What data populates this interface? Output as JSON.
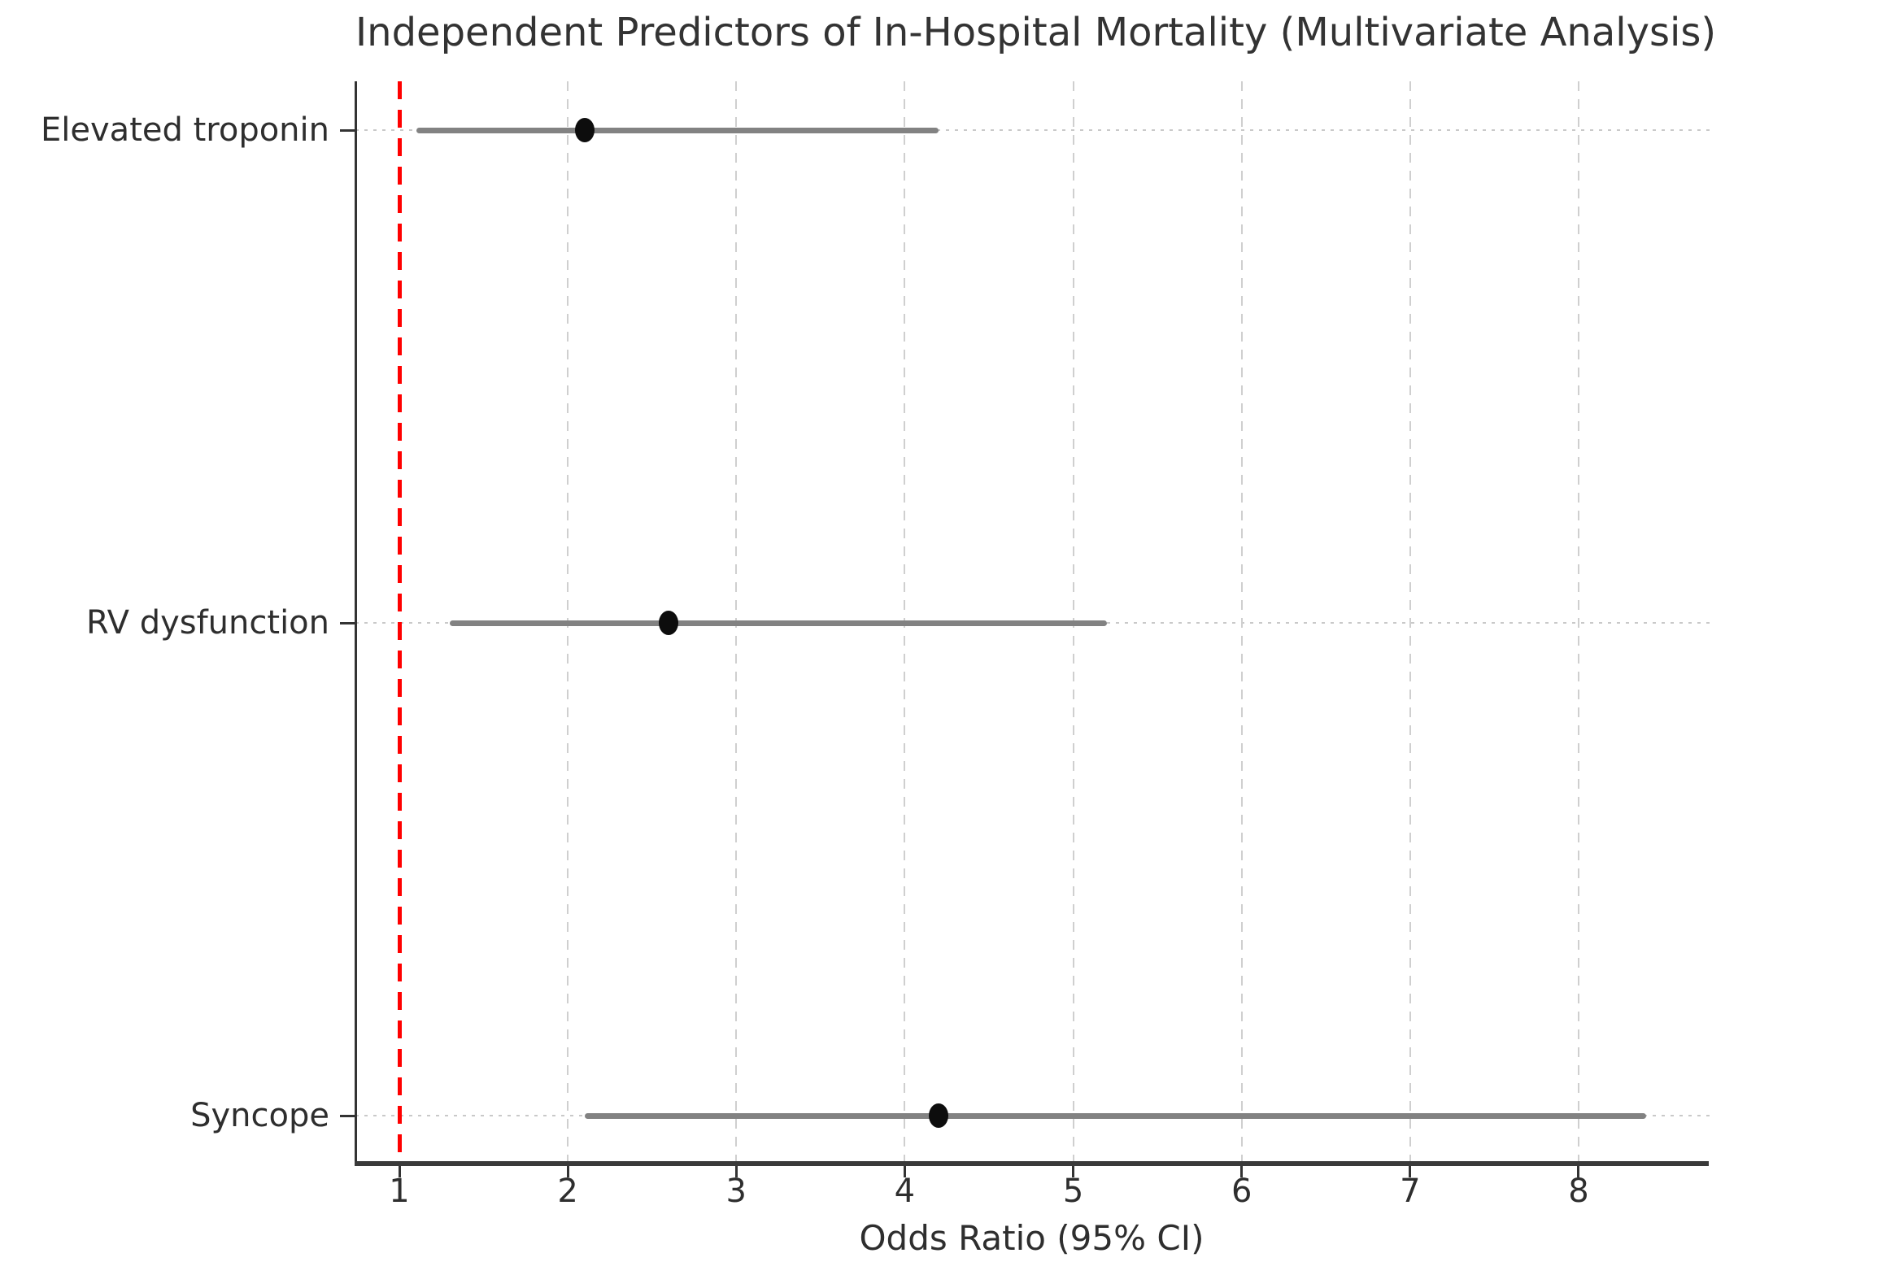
{
  "chart_data": {
    "type": "scatter",
    "subtype": "forest-plot",
    "title": "Independent Predictors of In-Hospital Mortality (Multivariate Analysis)",
    "xlabel": "Odds Ratio (95% CI)",
    "ylabel": "",
    "x_ticks": [
      1,
      2,
      3,
      4,
      5,
      6,
      7,
      8
    ],
    "xlim": [
      0.74,
      8.78
    ],
    "grid": "on",
    "legend": "none",
    "reference_line": {
      "value": 1,
      "style": "dashed",
      "color": "#ff0000"
    },
    "rows": [
      {
        "label": "Elevated troponin",
        "odds_ratio": 2.1,
        "ci_low": 1.1,
        "ci_high": 4.2
      },
      {
        "label": "RV dysfunction",
        "odds_ratio": 2.6,
        "ci_low": 1.3,
        "ci_high": 5.2
      },
      {
        "label": "Syncope",
        "odds_ratio": 4.2,
        "ci_low": 2.1,
        "ci_high": 8.4
      }
    ],
    "colors": {
      "ci_line": "#828282",
      "point": "#0d0d0d",
      "reference": "#ff0000",
      "gridline": "#cccccc",
      "axis": "#333333",
      "text": "#2e2e2e"
    }
  }
}
